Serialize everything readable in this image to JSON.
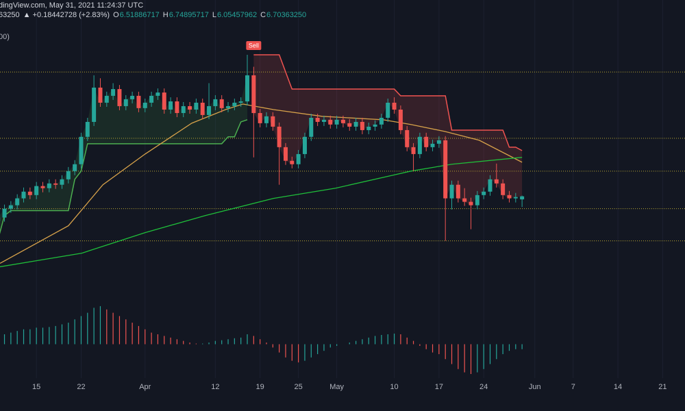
{
  "chart_data": {
    "type": "candlestick",
    "header": {
      "source": "dingView.com, May 31, 2021 11:24:37 UTC",
      "last": "63250",
      "change": "▲ +0.18442728 (+2.83%)",
      "fields": [
        {
          "label": "O",
          "value": "6.51886717"
        },
        {
          "label": "H",
          "value": "6.74895717"
        },
        {
          "label": "L",
          "value": "6.05457962"
        },
        {
          "label": "C",
          "value": "6.70363250"
        }
      ],
      "indicator": "00)"
    },
    "annotations": [
      {
        "text": "Sell"
      }
    ],
    "xlim": [
      9.3,
      116.5
    ],
    "ylim": [
      0.3,
      17.0
    ],
    "xticks": [
      15,
      22,
      {
        "value": 32,
        "label": "Apr"
      },
      {
        "value": 43,
        "label": "12"
      },
      {
        "value": 50,
        "label": "19"
      },
      {
        "value": 56,
        "label": "25"
      },
      {
        "value": 62,
        "label": "May"
      },
      {
        "value": 71,
        "label": "10"
      },
      {
        "value": 78,
        "label": "17"
      },
      {
        "value": 85,
        "label": "24"
      },
      {
        "value": 93,
        "label": "Jun"
      },
      {
        "value": 99,
        "label": "7"
      },
      {
        "value": 106,
        "label": "14"
      },
      {
        "value": 113,
        "label": "21"
      }
    ],
    "grid": true,
    "up_color": "#26a69a",
    "down_color": "#ef5350",
    "x": [
      9,
      10,
      11,
      12,
      13,
      14,
      15,
      16,
      17,
      18,
      19,
      20,
      21,
      22,
      23,
      24,
      25,
      26,
      27,
      28,
      29,
      30,
      31,
      32,
      33,
      34,
      35,
      36,
      37,
      38,
      39,
      40,
      41,
      42,
      43,
      44,
      45,
      46,
      47,
      48,
      49,
      50,
      51,
      52,
      53,
      54,
      55,
      56,
      57,
      58,
      59,
      60,
      61,
      62,
      63,
      64,
      65,
      66,
      67,
      68,
      69,
      70,
      71,
      72,
      73,
      74,
      75,
      76,
      77,
      78,
      79,
      80,
      81,
      82,
      83,
      84,
      85,
      86,
      87,
      88,
      89,
      90,
      91
    ],
    "open": [
      5.2,
      5.41,
      5.95,
      6.16,
      6.58,
      6.99,
      6.78,
      7.33,
      7.2,
      7.49,
      7.41,
      7.74,
      8.24,
      8.66,
      10.33,
      11.24,
      13.33,
      12.41,
      12.83,
      13.24,
      12.2,
      12.62,
      12.83,
      12.08,
      12.41,
      12.83,
      13.03,
      11.99,
      12.49,
      11.78,
      12.2,
      11.99,
      12.41,
      11.66,
      12.2,
      12.62,
      12.08,
      12.2,
      12.41,
      12.49,
      14.08,
      11.78,
      11.16,
      11.58,
      10.95,
      9.7,
      8.87,
      8.66,
      9.28,
      10.33,
      11.49,
      11.24,
      11.37,
      11.08,
      11.37,
      11.16,
      10.95,
      11.24,
      10.74,
      10.95,
      11.08,
      11.49,
      12.41,
      11.99,
      10.74,
      9.7,
      9.28,
      10.33,
      9.7,
      9.91,
      10.12,
      6.58,
      7.41,
      6.58,
      6.37,
      6.16,
      6.78,
      6.99,
      7.74,
      7.49,
      6.78,
      6.58,
      6.51886717
    ],
    "high": [
      5.66,
      6.2,
      6.41,
      6.83,
      7.24,
      7.24,
      7.58,
      7.58,
      7.74,
      7.74,
      7.99,
      8.49,
      8.91,
      10.58,
      11.49,
      14.08,
      13.9,
      13.08,
      13.6,
      13.49,
      12.87,
      13.08,
      13.08,
      12.66,
      13.08,
      13.28,
      13.28,
      12.74,
      12.74,
      12.45,
      12.45,
      12.66,
      12.66,
      13.6,
      12.87,
      12.87,
      12.45,
      12.66,
      12.74,
      15.33,
      14.6,
      12.03,
      11.83,
      11.83,
      11.2,
      9.95,
      9.12,
      9.53,
      10.58,
      11.74,
      11.74,
      11.62,
      11.62,
      11.62,
      11.62,
      11.41,
      11.49,
      11.49,
      11.2,
      11.33,
      11.74,
      12.66,
      12.74,
      12.24,
      10.99,
      9.95,
      10.58,
      10.58,
      10.16,
      10.37,
      10.37,
      7.66,
      7.66,
      7.2,
      6.62,
      7.03,
      7.24,
      7.99,
      8.7,
      7.74,
      7.03,
      6.91,
      6.74895717
    ],
    "low": [
      4.6,
      5.16,
      5.7,
      5.91,
      6.33,
      6.53,
      6.53,
      6.95,
      6.95,
      7.16,
      7.16,
      7.49,
      7.99,
      8.41,
      10.08,
      10.99,
      12.16,
      12.16,
      12.58,
      11.95,
      11.95,
      12.37,
      11.83,
      11.83,
      12.16,
      12.58,
      11.74,
      11.74,
      11.53,
      11.53,
      11.74,
      11.74,
      11.41,
      11.41,
      11.95,
      11.83,
      11.83,
      11.95,
      12.16,
      12.24,
      9.08,
      10.91,
      10.91,
      10.7,
      7.41,
      8.62,
      8.41,
      8.41,
      9.03,
      10.08,
      10.99,
      10.99,
      10.83,
      10.83,
      10.91,
      10.7,
      10.7,
      10.49,
      10.49,
      10.7,
      10.83,
      11.24,
      11.74,
      10.49,
      9.45,
      8.24,
      9.03,
      9.45,
      9.45,
      9.66,
      3.99,
      5.9,
      6.33,
      6.12,
      4.7,
      5.91,
      6.53,
      6.74,
      7.24,
      6.53,
      6.33,
      6.33,
      6.05457962
    ],
    "close": [
      5.41,
      5.95,
      6.16,
      6.58,
      6.99,
      6.78,
      7.33,
      7.2,
      7.49,
      7.41,
      7.74,
      8.24,
      8.66,
      10.33,
      11.24,
      13.33,
      12.41,
      12.83,
      13.24,
      12.2,
      12.62,
      12.83,
      12.08,
      12.41,
      12.83,
      13.03,
      11.99,
      12.49,
      11.78,
      12.2,
      11.99,
      12.41,
      11.66,
      12.2,
      12.62,
      12.08,
      12.2,
      12.41,
      12.49,
      14.08,
      11.78,
      11.16,
      11.58,
      10.95,
      9.7,
      8.87,
      8.66,
      9.28,
      10.33,
      11.49,
      11.24,
      11.37,
      11.08,
      11.37,
      11.16,
      10.95,
      11.24,
      10.74,
      10.95,
      11.08,
      11.49,
      12.41,
      11.99,
      10.74,
      9.7,
      9.28,
      10.33,
      9.7,
      9.91,
      10.12,
      6.58,
      7.41,
      6.58,
      6.37,
      6.16,
      6.78,
      6.99,
      7.74,
      7.49,
      6.78,
      6.58,
      6.66,
      6.7036325
    ],
    "bands": [
      {
        "color": "#4caf50",
        "fill": "rgba(76,175,80,0.13)",
        "values": [
          4.08,
          5.53,
          5.83,
          5.83,
          5.83,
          5.83,
          5.83,
          5.83,
          5.83,
          5.83,
          5.83,
          5.83,
          7.74,
          8.24,
          9.91,
          9.91,
          9.91,
          9.91,
          9.91,
          9.91,
          9.91,
          9.91,
          9.91,
          9.91,
          9.91,
          9.91,
          9.91,
          9.91,
          9.91,
          9.91,
          9.91,
          9.91,
          9.91,
          9.91,
          9.91,
          9.91,
          10.33,
          10.33,
          11.24,
          11.37,
          null,
          null,
          null,
          null,
          null,
          null,
          null,
          null,
          null,
          null,
          null,
          null,
          null,
          null,
          null,
          null,
          null,
          null,
          null,
          null,
          null,
          null,
          null,
          null,
          null,
          null,
          null,
          null,
          null,
          null,
          null,
          null,
          null,
          null,
          null,
          null,
          null,
          null,
          null,
          null,
          null,
          null,
          null
        ]
      },
      {
        "color": "#ef5350",
        "fill": "rgba(239,83,80,0.16)",
        "values": [
          null,
          null,
          null,
          null,
          null,
          null,
          null,
          null,
          null,
          null,
          null,
          null,
          null,
          null,
          null,
          null,
          null,
          null,
          null,
          null,
          null,
          null,
          null,
          null,
          null,
          null,
          null,
          null,
          null,
          null,
          null,
          null,
          null,
          null,
          null,
          null,
          null,
          null,
          null,
          null,
          15.33,
          15.33,
          15.33,
          15.33,
          15.33,
          14.28,
          13.24,
          13.24,
          13.24,
          13.24,
          13.24,
          13.24,
          13.24,
          13.24,
          13.24,
          13.24,
          13.24,
          13.24,
          13.24,
          13.24,
          13.24,
          13.24,
          13.24,
          12.83,
          12.83,
          12.83,
          12.83,
          12.83,
          12.83,
          12.83,
          12.83,
          10.74,
          10.74,
          10.74,
          10.74,
          10.74,
          10.74,
          10.74,
          10.74,
          10.74,
          9.7,
          9.7,
          9.49
        ]
      }
    ],
    "lines": [
      {
        "color": "#d7a24a",
        "x": [
          9.3,
          20,
          25.4,
          32,
          39.3,
          44.6,
          47.3,
          52.1,
          59.7,
          69.3,
          73.6,
          78.9,
          84.3,
          91
        ],
        "values": [
          2.62,
          4.91,
          7.41,
          9.28,
          11.16,
          11.99,
          12.33,
          11.99,
          11.58,
          11.37,
          11.08,
          10.66,
          10.12,
          8.78
        ]
      },
      {
        "color": "#1fbf3a",
        "x": [
          9.3,
          22.1,
          32,
          41.4,
          52.1,
          61.8,
          73.6,
          80,
          91
        ],
        "values": [
          2.41,
          3.24,
          4.49,
          5.53,
          6.58,
          7.2,
          8.24,
          8.66,
          9.08
        ]
      }
    ],
    "levels": {
      "color": "#b8a632",
      "values": [
        14.28,
        10.24,
        8.24,
        5.95,
        3.99
      ]
    },
    "oscillator": {
      "ylim": [
        -1.5,
        1.5
      ],
      "values": [
        0.25,
        0.3,
        0.35,
        0.4,
        0.45,
        0.45,
        0.5,
        0.5,
        0.52,
        0.55,
        0.6,
        0.65,
        0.75,
        0.85,
        0.95,
        1.1,
        1.15,
        1.05,
        0.95,
        0.85,
        0.75,
        0.65,
        0.55,
        0.45,
        0.35,
        0.3,
        0.25,
        0.2,
        0.15,
        0.1,
        0.05,
        0.02,
        0.02,
        0.05,
        0.1,
        0.12,
        0.15,
        0.18,
        0.2,
        0.3,
        0.25,
        0.15,
        0.05,
        -0.1,
        -0.25,
        -0.4,
        -0.5,
        -0.55,
        -0.5,
        -0.4,
        -0.3,
        -0.2,
        -0.1,
        -0.05,
        0,
        0.05,
        0.1,
        0.15,
        0.2,
        0.25,
        0.28,
        0.3,
        0.32,
        0.3,
        0.2,
        0.1,
        -0.05,
        -0.15,
        -0.25,
        -0.3,
        -0.45,
        -0.6,
        -0.75,
        -0.85,
        -0.9,
        -0.85,
        -0.75,
        -0.6,
        -0.45,
        -0.3,
        -0.2,
        -0.15,
        -0.15
      ]
    }
  }
}
